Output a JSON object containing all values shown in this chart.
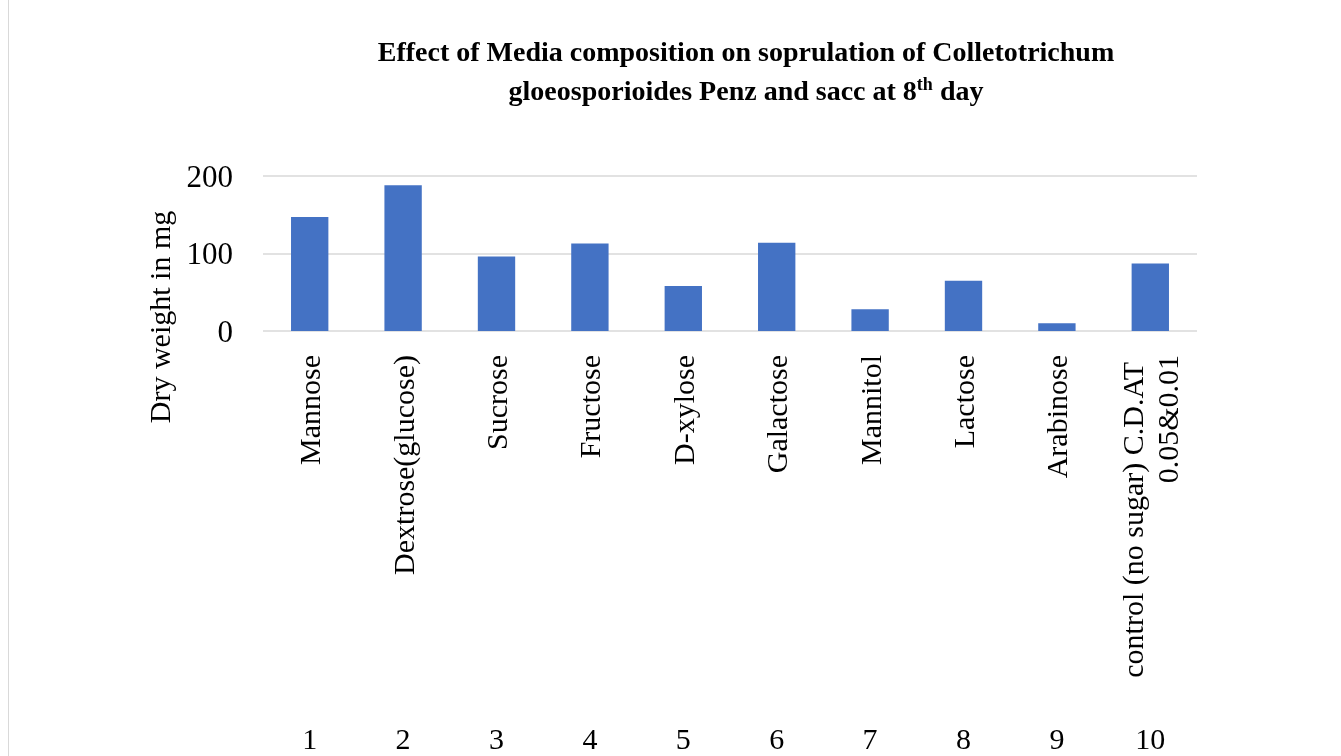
{
  "chart_data": {
    "type": "bar",
    "title": "Effect of Media composition on soprulation of Colletotrichum gloeosporioides Penz and sacc at 8$^{th}$ day",
    "ylabel": "Dry weight in mg",
    "categories": [
      "Mannose",
      "Dextrose(glucose)",
      "Sucrose",
      "Fructose",
      "D-xylose",
      "Galactose",
      "Mannitol",
      "Lactose",
      "Arabinose",
      "control (no sugar) C.D.AT 0.05&0.01"
    ],
    "values": [
      147,
      188,
      96,
      113,
      58,
      114,
      28,
      65,
      10,
      87
    ],
    "color": "#4472c4",
    "ylim": [
      0,
      200
    ],
    "yticks": [
      0,
      100,
      200
    ],
    "grid": "y",
    "annotations": [
      "1",
      "2",
      "3",
      "4",
      "5",
      "6",
      "7",
      "8",
      "9",
      "10"
    ]
  }
}
